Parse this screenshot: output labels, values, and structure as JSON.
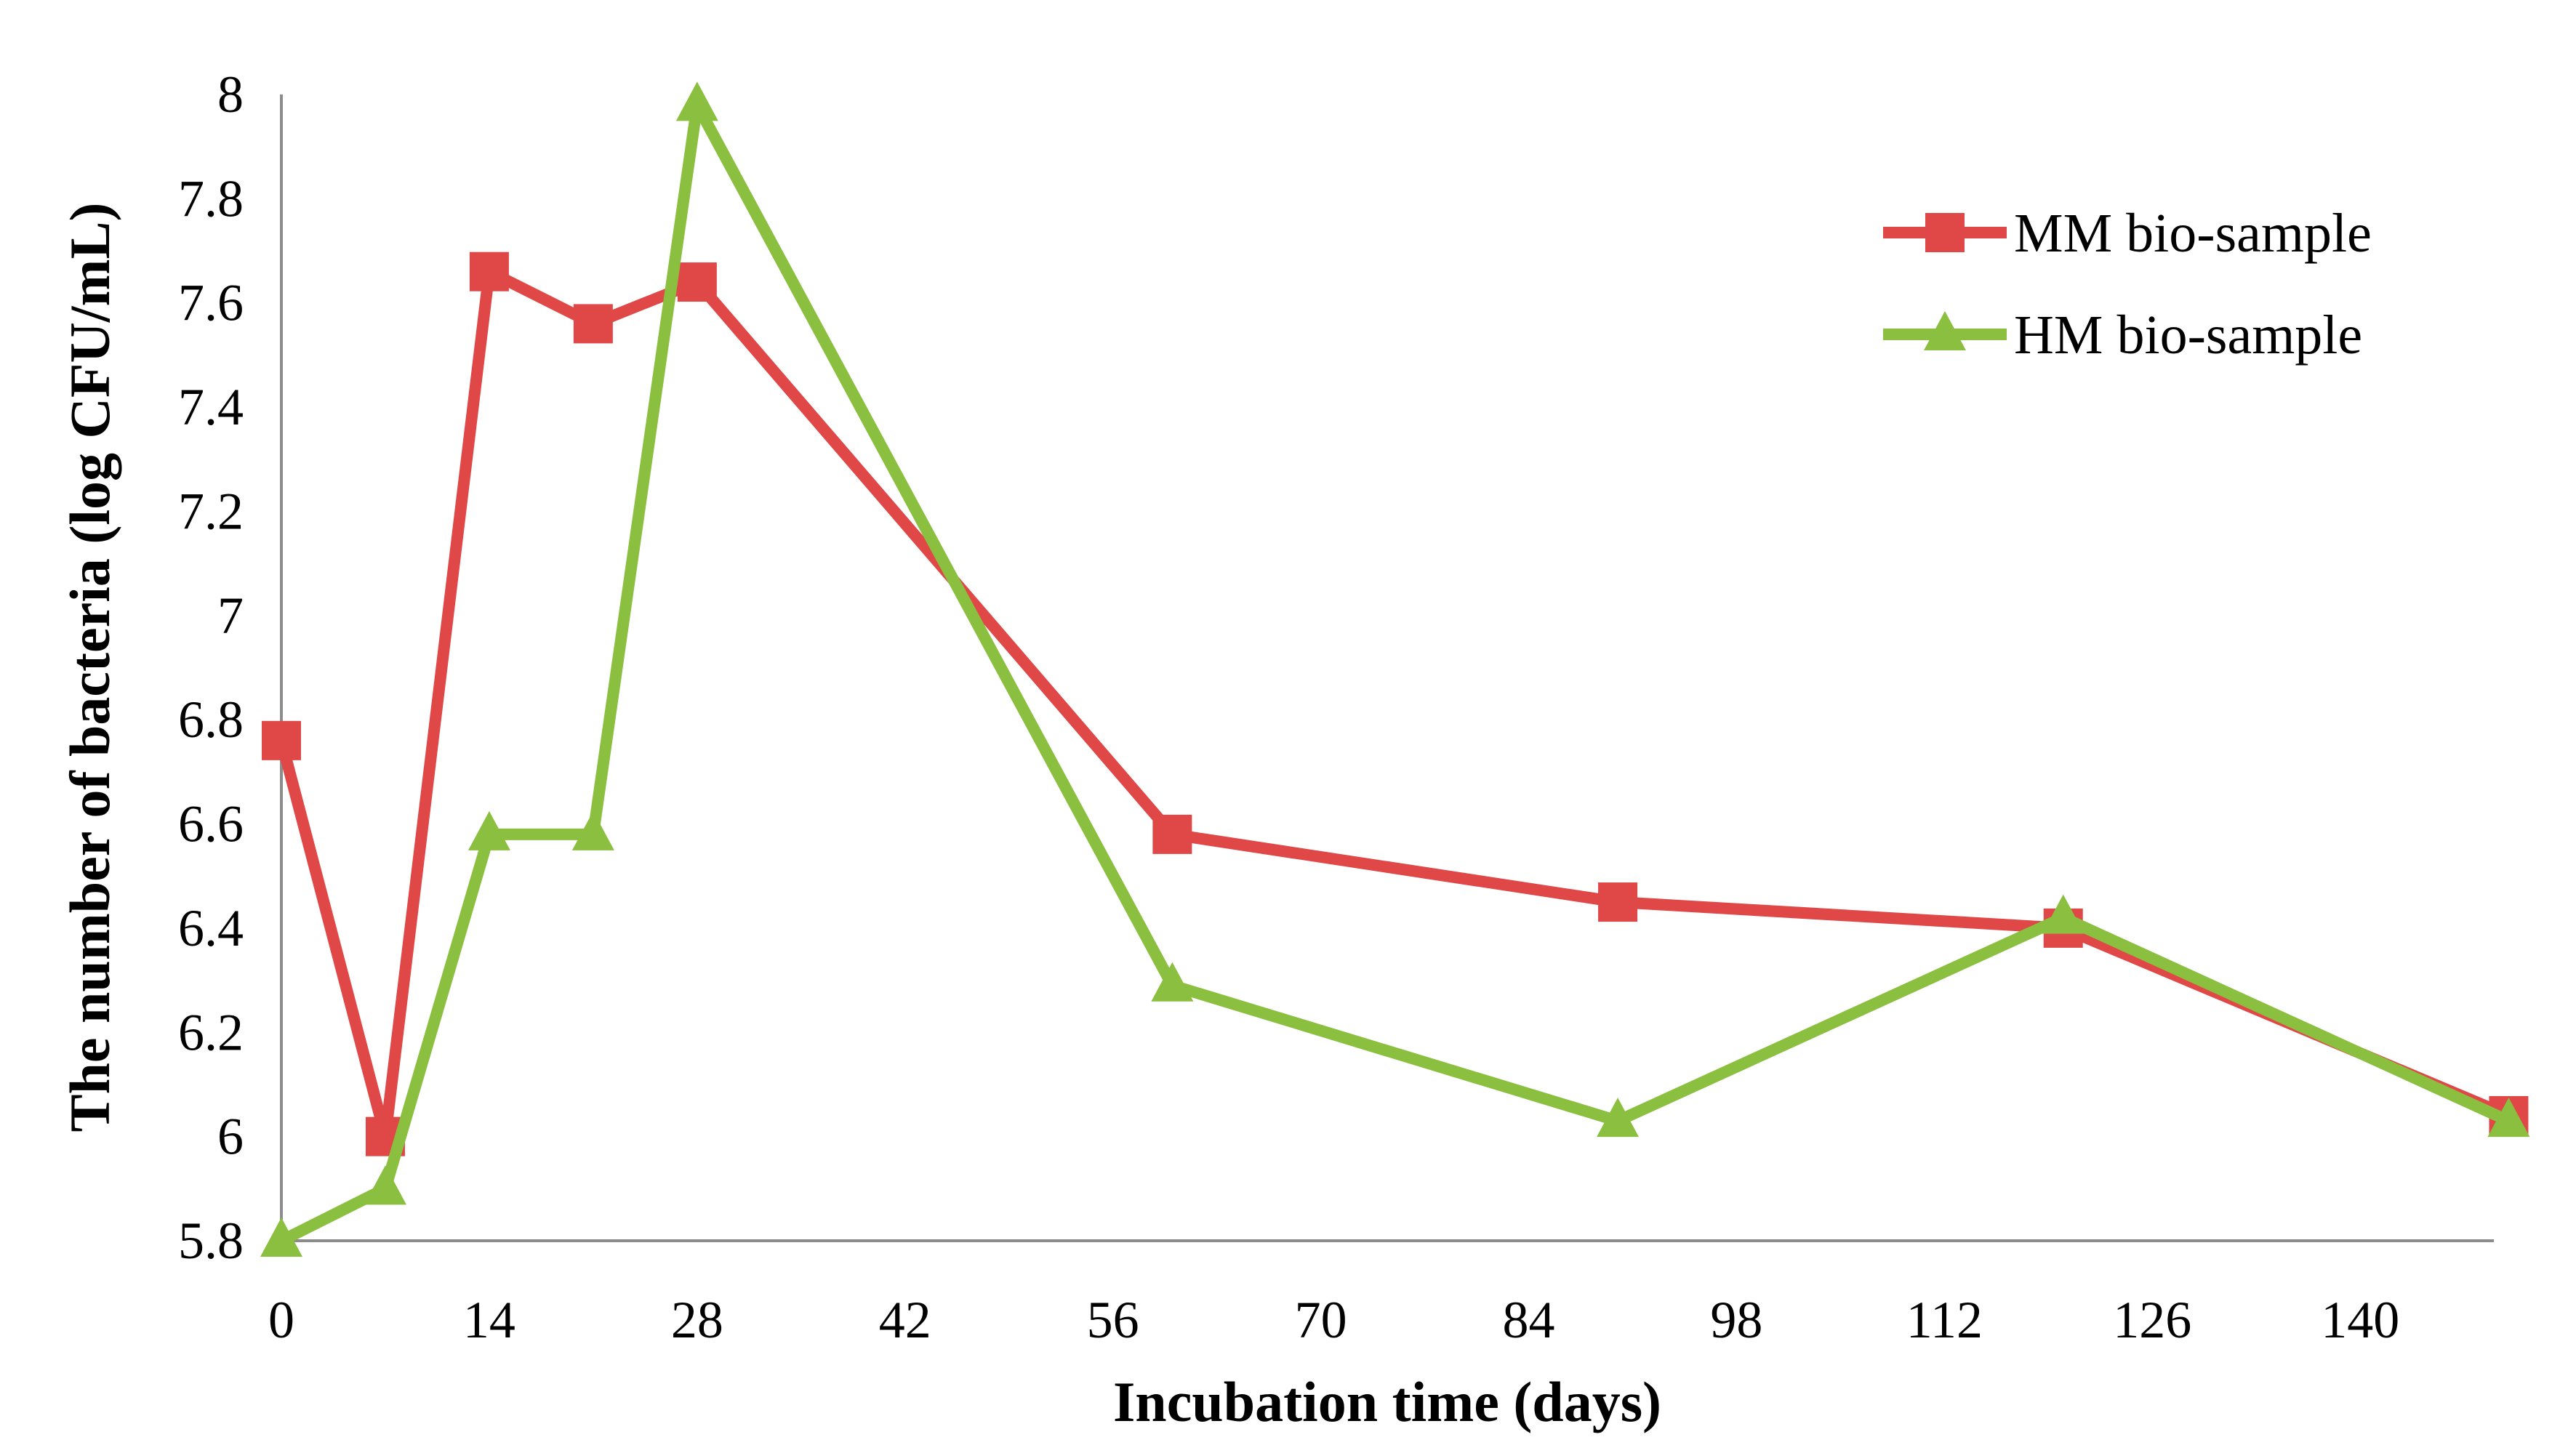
{
  "chart_data": {
    "type": "line",
    "title": "",
    "xlabel": "Incubation time (days)",
    "ylabel": "The number of bacteria (log CFU/mL)",
    "xlim": [
      0,
      149
    ],
    "ylim": [
      5.8,
      8
    ],
    "xticks": [
      0,
      14,
      28,
      42,
      56,
      70,
      84,
      98,
      112,
      126,
      140
    ],
    "yticks": [
      5.8,
      6,
      6.2,
      6.4,
      6.6,
      6.8,
      7,
      7.2,
      7.4,
      7.6,
      7.8,
      8
    ],
    "ytick_labels": [
      "5.8",
      "6",
      "6.2",
      "6.4",
      "6.6",
      "6.8",
      "7",
      "7.2",
      "7.4",
      "7.6",
      "7.8",
      "8"
    ],
    "grid": false,
    "legend_position": "top-right",
    "series": [
      {
        "name": "MM bio-sample",
        "color": "#e04848",
        "marker": "square",
        "x": [
          0,
          7,
          14,
          21,
          28,
          60,
          90,
          120,
          150
        ],
        "y": [
          6.76,
          6.0,
          7.66,
          7.56,
          7.64,
          6.58,
          6.45,
          6.4,
          6.04
        ]
      },
      {
        "name": "HM bio-sample",
        "color": "#8bbf3f",
        "marker": "triangle",
        "x": [
          0,
          7,
          14,
          21,
          28,
          60,
          90,
          120,
          150
        ],
        "y": [
          5.8,
          5.9,
          6.58,
          6.58,
          7.98,
          6.29,
          6.03,
          6.42,
          6.03
        ]
      }
    ]
  }
}
